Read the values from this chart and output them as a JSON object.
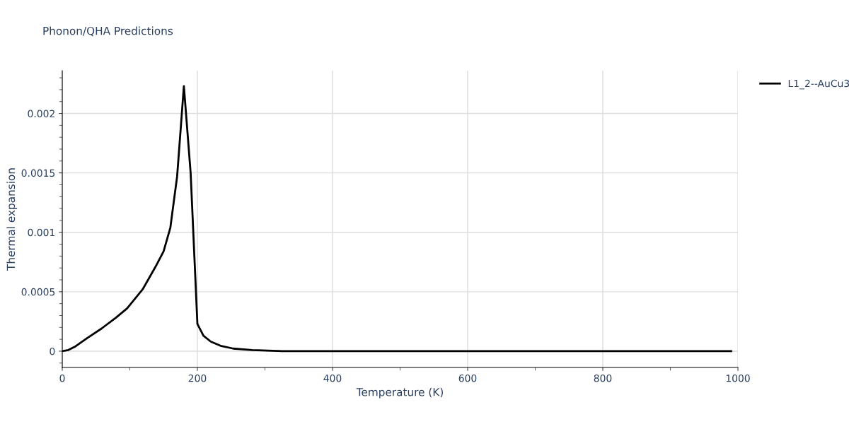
{
  "chart_data": {
    "type": "line",
    "title": "Phonon/QHA Predictions",
    "xlabel": "Temperature (K)",
    "ylabel": "Thermal expansion",
    "xlim": [
      0,
      1000
    ],
    "xticks": [
      0,
      200,
      400,
      600,
      800,
      1000
    ],
    "ylim": [
      -0.000137,
      0.00236
    ],
    "yticks": [
      0,
      0.0005,
      0.001,
      0.0015,
      0.002
    ],
    "grid": true,
    "legend": "top right",
    "series": [
      {
        "name": "L1_2--AuCu3",
        "color": "#000000",
        "x": [
          0,
          9,
          19.5,
          37,
          58,
          79,
          96,
          119,
          138,
          150,
          160,
          170,
          180,
          190,
          200,
          209,
          220,
          235.5,
          253,
          281,
          326,
          420,
          600,
          800,
          990
        ],
        "values": [
          0,
          1e-05,
          4e-05,
          0.00011,
          0.00019,
          0.00028,
          0.00036,
          0.00052,
          0.00071,
          0.00084,
          0.00104,
          0.00147,
          0.00223,
          0.0015,
          0.00023,
          0.00013,
          8e-05,
          4.3e-05,
          2.2e-05,
          1e-05,
          0,
          0,
          0,
          0,
          0
        ]
      }
    ]
  }
}
